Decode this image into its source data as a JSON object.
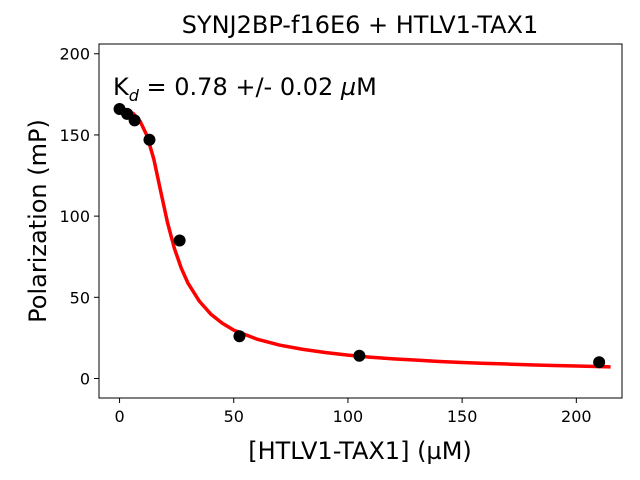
{
  "chart_data": {
    "type": "scatter",
    "title": "SYNJ2BP-f16E6 + HTLV1-TAX1",
    "xlabel": "[HTLV1-TAX1] (µM)",
    "ylabel": "Polarization (mP)",
    "xlim": [
      -9,
      220
    ],
    "ylim": [
      -12,
      206
    ],
    "x_ticks": [
      0,
      50,
      100,
      150,
      200
    ],
    "y_ticks": [
      0,
      50,
      100,
      150,
      200
    ],
    "grid": false,
    "annotation": {
      "k": "K",
      "sub": "d",
      "rest": " = 0.78 +/- 0.02 ",
      "mu": "µ",
      "unit": "M"
    },
    "series": [
      {
        "kind": "points",
        "color": "#000000",
        "x": [
          0,
          3.3,
          6.6,
          13.1,
          26.3,
          52.5,
          105,
          210
        ],
        "y": [
          166,
          163,
          159,
          147,
          85,
          26,
          14,
          10
        ]
      },
      {
        "kind": "fit",
        "color": "#ff0000",
        "x": [
          0,
          3,
          6,
          9,
          12,
          15,
          18,
          21,
          24,
          27,
          30,
          35,
          40,
          45,
          50,
          60,
          70,
          80,
          90,
          100,
          110,
          120,
          130,
          140,
          150,
          160,
          170,
          180,
          190,
          200,
          215
        ],
        "y": [
          166,
          165.4,
          163.2,
          158.4,
          149.6,
          135.1,
          115.4,
          96.0,
          80.2,
          68.0,
          58.6,
          47.5,
          39.6,
          34.0,
          29.8,
          24.3,
          20.6,
          18.0,
          16.0,
          14.4,
          13.1,
          12.1,
          11.3,
          10.5,
          9.9,
          9.3,
          8.9,
          8.4,
          8.0,
          7.7,
          7.2
        ]
      }
    ]
  }
}
